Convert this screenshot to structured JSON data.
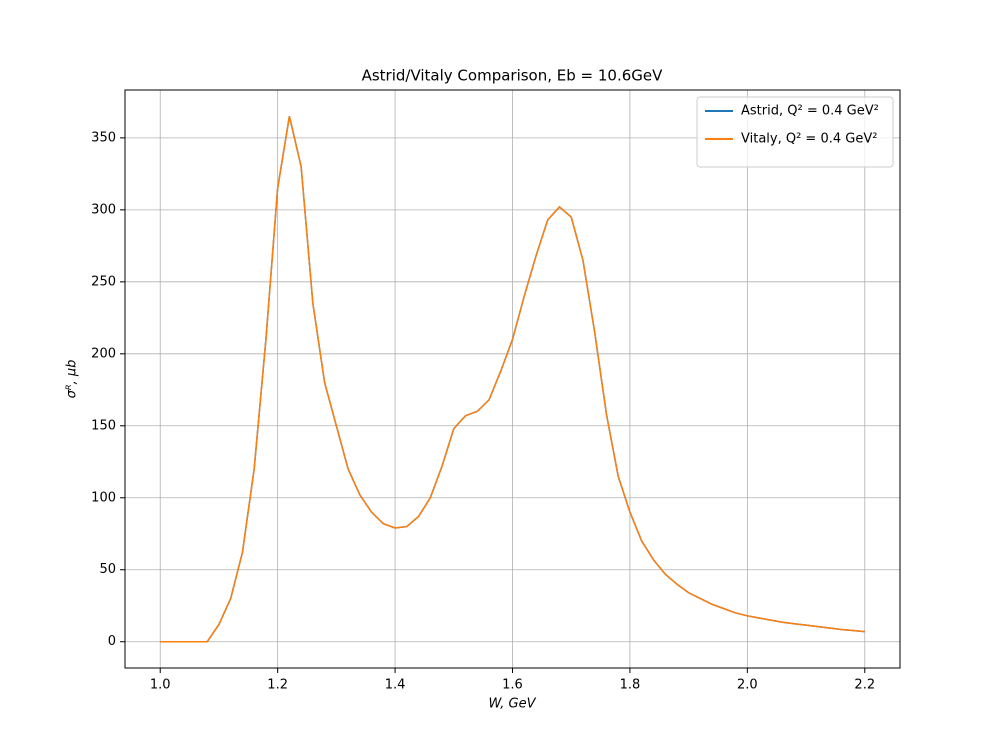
{
  "chart_data": {
    "type": "line",
    "title": "Astrid/Vitaly Comparison, Eb = 10.6GeV",
    "x_label": "W, GeV",
    "y_label": "σᴿ, μb",
    "x": [
      1.0,
      1.02,
      1.04,
      1.06,
      1.08,
      1.1,
      1.12,
      1.14,
      1.16,
      1.18,
      1.2,
      1.22,
      1.24,
      1.26,
      1.28,
      1.3,
      1.32,
      1.34,
      1.36,
      1.38,
      1.4,
      1.42,
      1.44,
      1.46,
      1.48,
      1.5,
      1.52,
      1.54,
      1.56,
      1.58,
      1.6,
      1.62,
      1.64,
      1.66,
      1.68,
      1.7,
      1.72,
      1.74,
      1.76,
      1.78,
      1.8,
      1.82,
      1.84,
      1.86,
      1.88,
      1.9,
      1.92,
      1.94,
      1.96,
      1.98,
      2.0,
      2.02,
      2.04,
      2.06,
      2.08,
      2.1,
      2.12,
      2.14,
      2.16,
      2.18,
      2.2
    ],
    "series": [
      {
        "name": "Astrid, Q² = 0.4 GeV²",
        "color": "#1f77b4",
        "values": [
          0,
          0,
          0,
          0,
          0,
          12,
          30,
          62,
          120,
          210,
          315,
          365,
          330,
          235,
          180,
          150,
          120,
          102,
          90,
          82,
          79,
          80,
          87,
          100,
          122,
          148,
          157,
          160,
          168,
          188,
          210,
          240,
          268,
          293,
          302,
          295,
          265,
          215,
          158,
          115,
          90,
          70,
          57,
          47,
          40,
          34,
          30,
          26,
          23,
          20,
          18,
          16.5,
          15,
          13.5,
          12.5,
          11.5,
          10.5,
          9.5,
          8.5,
          7.8,
          7
        ]
      },
      {
        "name": "Vitaly, Q² = 0.4 GeV²",
        "color": "#ff7f0e",
        "values": [
          0,
          0,
          0,
          0,
          0,
          12,
          30,
          62,
          120,
          210,
          315,
          365,
          330,
          235,
          180,
          150,
          120,
          102,
          90,
          82,
          79,
          80,
          87,
          100,
          122,
          148,
          157,
          160,
          168,
          188,
          210,
          240,
          268,
          293,
          302,
          295,
          265,
          215,
          158,
          115,
          90,
          70,
          57,
          47,
          40,
          34,
          30,
          26,
          23,
          20,
          18,
          16.5,
          15,
          13.5,
          12.5,
          11.5,
          10.5,
          9.5,
          8.5,
          7.8,
          7
        ]
      }
    ],
    "xlim": [
      0.94,
      2.26
    ],
    "ylim": [
      -18.25,
      383.25
    ],
    "xticks": [
      {
        "value": 1,
        "label": "1.0"
      },
      1.2,
      1.4,
      1.6,
      1.8,
      {
        "value": 2,
        "label": "2.0"
      },
      2.2
    ],
    "yticks": [
      0,
      50,
      100,
      150,
      200,
      250,
      300,
      350
    ],
    "grid": true,
    "legend": "upper right"
  }
}
